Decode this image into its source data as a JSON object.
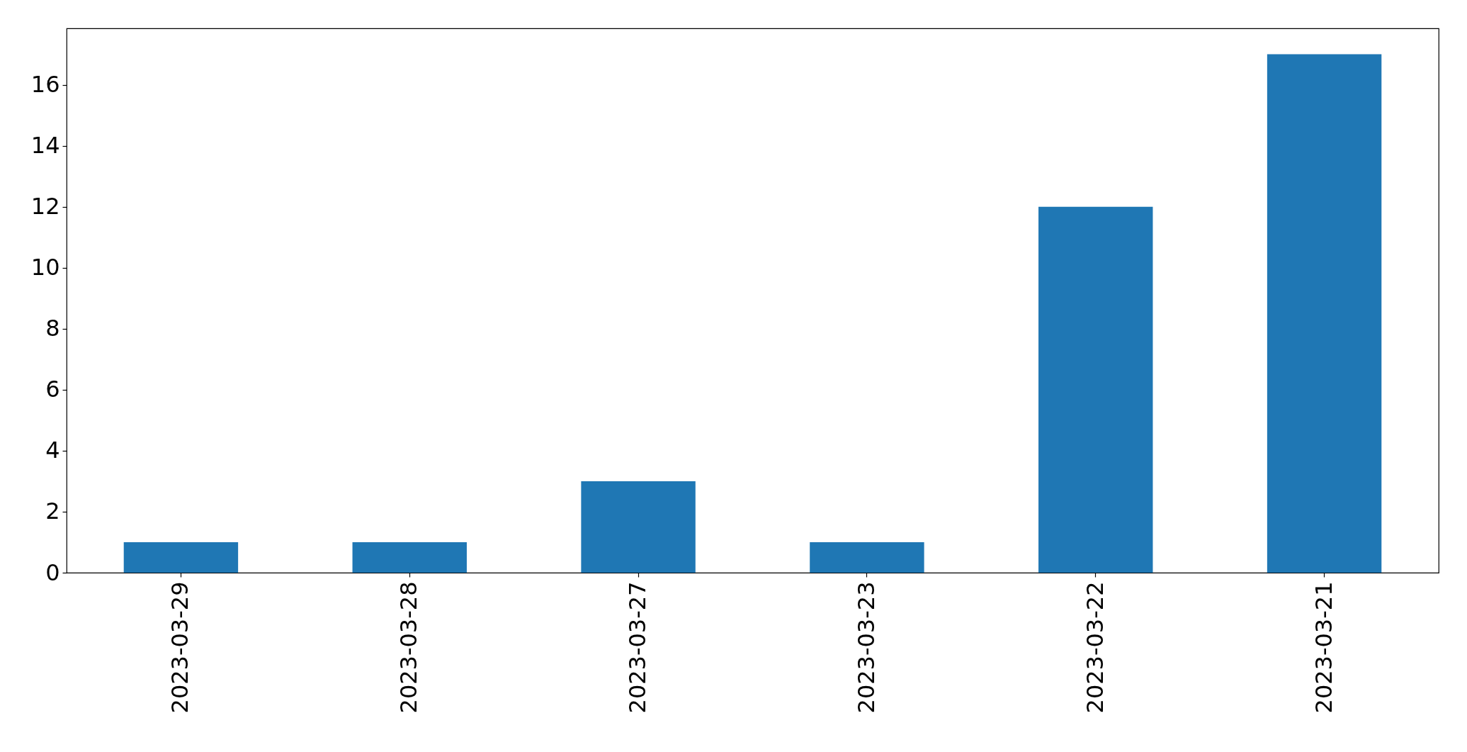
{
  "chart_data": {
    "type": "bar",
    "categories": [
      "2023-03-29",
      "2023-03-28",
      "2023-03-27",
      "2023-03-23",
      "2023-03-22",
      "2023-03-21"
    ],
    "values": [
      1,
      1,
      3,
      1,
      12,
      17
    ],
    "color": "#1f77b4",
    "ylim": [
      0,
      17.85
    ],
    "yticks": [
      0,
      2,
      4,
      6,
      8,
      10,
      12,
      14,
      16
    ]
  }
}
